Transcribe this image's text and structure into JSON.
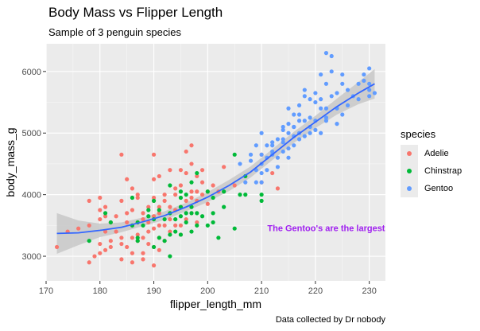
{
  "chart_data": {
    "type": "scatter",
    "title": "Body Mass vs Flipper Length",
    "subtitle": "Sample of 3 penguin species",
    "caption": "Data collected by Dr nobody",
    "xlabel": "flipper_length_mm",
    "ylabel": "body_mass_g",
    "xlim": [
      170,
      233
    ],
    "ylim": [
      2600,
      6450
    ],
    "x_ticks": [
      170,
      180,
      190,
      200,
      210,
      220,
      230
    ],
    "y_ticks": [
      3000,
      4000,
      5000,
      6000
    ],
    "grid": true,
    "legend": {
      "title": "species",
      "position": "right"
    },
    "annotation": {
      "text": "The Gentoo's are the largest",
      "x": 222,
      "y": 3460,
      "color": "#a020f0"
    },
    "series": [
      {
        "name": "Adelie",
        "color": "#f8766d",
        "points": [
          [
            172,
            3150
          ],
          [
            174,
            3400
          ],
          [
            176,
            3450
          ],
          [
            178,
            3900
          ],
          [
            178,
            2900
          ],
          [
            178,
            3500
          ],
          [
            179,
            3000
          ],
          [
            180,
            3950
          ],
          [
            180,
            3600
          ],
          [
            180,
            3200
          ],
          [
            180,
            3050
          ],
          [
            180,
            3750
          ],
          [
            181,
            3650
          ],
          [
            181,
            3400
          ],
          [
            181,
            3100
          ],
          [
            181,
            3800
          ],
          [
            182,
            3550
          ],
          [
            182,
            3250
          ],
          [
            182,
            3150
          ],
          [
            183,
            3400
          ],
          [
            183,
            3650
          ],
          [
            184,
            3300
          ],
          [
            184,
            4650
          ],
          [
            184,
            3200
          ],
          [
            184,
            3900
          ],
          [
            184,
            2950
          ],
          [
            185,
            3700
          ],
          [
            185,
            3150
          ],
          [
            185,
            3550
          ],
          [
            185,
            4250
          ],
          [
            186,
            3050
          ],
          [
            186,
            3300
          ],
          [
            186,
            3500
          ],
          [
            186,
            3750
          ],
          [
            186,
            4100
          ],
          [
            186,
            2900
          ],
          [
            187,
            3350
          ],
          [
            187,
            3550
          ],
          [
            187,
            3950
          ],
          [
            187,
            4000
          ],
          [
            187,
            3250
          ],
          [
            188,
            3600
          ],
          [
            188,
            3300
          ],
          [
            188,
            3700
          ],
          [
            188,
            3050
          ],
          [
            188,
            2950
          ],
          [
            189,
            3400
          ],
          [
            189,
            3550
          ],
          [
            189,
            3800
          ],
          [
            189,
            3200
          ],
          [
            190,
            3450
          ],
          [
            190,
            3650
          ],
          [
            190,
            3900
          ],
          [
            190,
            4250
          ],
          [
            190,
            3150
          ],
          [
            190,
            2850
          ],
          [
            190,
            3950
          ],
          [
            190,
            4650
          ],
          [
            191,
            3800
          ],
          [
            191,
            3300
          ],
          [
            191,
            3500
          ],
          [
            191,
            3700
          ],
          [
            191,
            4300
          ],
          [
            191,
            3100
          ],
          [
            192,
            3900
          ],
          [
            192,
            3500
          ],
          [
            192,
            4000
          ],
          [
            192,
            3250
          ],
          [
            193,
            3800
          ],
          [
            193,
            3400
          ],
          [
            193,
            4400
          ],
          [
            193,
            3600
          ],
          [
            194,
            4000
          ],
          [
            194,
            3500
          ],
          [
            194,
            3750
          ],
          [
            194,
            4100
          ],
          [
            195,
            3800
          ],
          [
            195,
            4150
          ],
          [
            195,
            3500
          ],
          [
            195,
            3350
          ],
          [
            195,
            4400
          ],
          [
            196,
            3900
          ],
          [
            196,
            4350
          ],
          [
            196,
            3600
          ],
          [
            196,
            4700
          ],
          [
            197,
            4050
          ],
          [
            197,
            3700
          ],
          [
            197,
            4500
          ],
          [
            197,
            3950
          ],
          [
            197,
            4800
          ],
          [
            198,
            4300
          ],
          [
            198,
            3900
          ],
          [
            198,
            4050
          ],
          [
            198,
            3550
          ],
          [
            199,
            4000
          ],
          [
            199,
            4200
          ],
          [
            199,
            4400
          ],
          [
            200,
            4050
          ],
          [
            200,
            3850
          ],
          [
            201,
            4150
          ],
          [
            202,
            4050
          ],
          [
            203,
            4450
          ],
          [
            205,
            4150
          ],
          [
            210,
            4200
          ],
          [
            210,
            4650
          ],
          [
            212,
            4350
          ],
          [
            213,
            4100
          ]
        ]
      },
      {
        "name": "Chinstrap",
        "color": "#00ba38",
        "points": [
          [
            178,
            3250
          ],
          [
            181,
            3700
          ],
          [
            182,
            3550
          ],
          [
            186,
            3500
          ],
          [
            186,
            3950
          ],
          [
            187,
            3300
          ],
          [
            187,
            3550
          ],
          [
            187,
            3250
          ],
          [
            188,
            3500
          ],
          [
            189,
            3650
          ],
          [
            189,
            3750
          ],
          [
            190,
            3600
          ],
          [
            190,
            3150
          ],
          [
            190,
            3900
          ],
          [
            191,
            3300
          ],
          [
            191,
            3750
          ],
          [
            192,
            3250
          ],
          [
            192,
            3600
          ],
          [
            193,
            3350
          ],
          [
            193,
            3700
          ],
          [
            193,
            4150
          ],
          [
            193,
            3000
          ],
          [
            194,
            3600
          ],
          [
            194,
            3400
          ],
          [
            195,
            3650
          ],
          [
            195,
            3800
          ],
          [
            195,
            3350
          ],
          [
            195,
            4050
          ],
          [
            195,
            3950
          ],
          [
            196,
            3700
          ],
          [
            196,
            4000
          ],
          [
            196,
            3550
          ],
          [
            197,
            3800
          ],
          [
            197,
            4200
          ],
          [
            197,
            3700
          ],
          [
            197,
            3400
          ],
          [
            198,
            3700
          ],
          [
            198,
            3500
          ],
          [
            198,
            4350
          ],
          [
            199,
            3650
          ],
          [
            200,
            3500
          ],
          [
            200,
            4050
          ],
          [
            201,
            3550
          ],
          [
            201,
            3700
          ],
          [
            201,
            3950
          ],
          [
            202,
            3300
          ],
          [
            203,
            3800
          ],
          [
            203,
            4050
          ],
          [
            205,
            4650
          ],
          [
            205,
            3450
          ],
          [
            206,
            4000
          ],
          [
            207,
            4300
          ],
          [
            207,
            4000
          ],
          [
            210,
            3900
          ],
          [
            210,
            4000
          ]
        ]
      },
      {
        "name": "Gentoo",
        "color": "#619cff",
        "points": [
          [
            206,
            4500
          ],
          [
            207,
            4200
          ],
          [
            208,
            4650
          ],
          [
            208,
            4550
          ],
          [
            209,
            4400
          ],
          [
            209,
            4800
          ],
          [
            209,
            4200
          ],
          [
            210,
            4500
          ],
          [
            210,
            4650
          ],
          [
            210,
            4350
          ],
          [
            210,
            5000
          ],
          [
            210,
            4200
          ],
          [
            211,
            4800
          ],
          [
            211,
            4400
          ],
          [
            211,
            4600
          ],
          [
            212,
            4850
          ],
          [
            212,
            4700
          ],
          [
            212,
            4650
          ],
          [
            213,
            4600
          ],
          [
            213,
            4900
          ],
          [
            213,
            4450
          ],
          [
            214,
            4850
          ],
          [
            214,
            5100
          ],
          [
            214,
            4700
          ],
          [
            214,
            4900
          ],
          [
            215,
            5000
          ],
          [
            215,
            4600
          ],
          [
            215,
            5400
          ],
          [
            215,
            5150
          ],
          [
            215,
            4750
          ],
          [
            216,
            4950
          ],
          [
            216,
            5100
          ],
          [
            216,
            4800
          ],
          [
            216,
            5300
          ],
          [
            217,
            4900
          ],
          [
            217,
            5200
          ],
          [
            217,
            5000
          ],
          [
            217,
            5450
          ],
          [
            218,
            5200
          ],
          [
            218,
            5600
          ],
          [
            218,
            5700
          ],
          [
            218,
            4950
          ],
          [
            219,
            5000
          ],
          [
            219,
            5250
          ],
          [
            219,
            5550
          ],
          [
            220,
            5200
          ],
          [
            220,
            5650
          ],
          [
            220,
            5050
          ],
          [
            221,
            5000
          ],
          [
            221,
            5400
          ],
          [
            221,
            5950
          ],
          [
            221,
            5550
          ],
          [
            222,
            5250
          ],
          [
            222,
            5800
          ],
          [
            222,
            5400
          ],
          [
            222,
            5200
          ],
          [
            223,
            5600
          ],
          [
            223,
            6000
          ],
          [
            224,
            5650
          ],
          [
            224,
            5400
          ],
          [
            225,
            5300
          ],
          [
            225,
            5800
          ],
          [
            225,
            5950
          ],
          [
            226,
            5450
          ],
          [
            226,
            5700
          ],
          [
            227,
            5600
          ],
          [
            228,
            5550
          ],
          [
            228,
            5800
          ],
          [
            229,
            5950
          ],
          [
            230,
            5600
          ],
          [
            230,
            5800
          ],
          [
            230,
            5700
          ],
          [
            231,
            5650
          ],
          [
            222,
            6300
          ],
          [
            223,
            6250
          ],
          [
            219,
            5100
          ],
          [
            216,
            5100
          ],
          [
            212,
            4800
          ],
          [
            214,
            5050
          ],
          [
            220,
            5500
          ],
          [
            229,
            5850
          ],
          [
            230,
            6050
          ],
          [
            224,
            5150
          ],
          [
            217,
            5300
          ]
        ]
      }
    ],
    "trend": {
      "color": "#3366ff",
      "ribbon_color": "#c8c8c8",
      "x": [
        172,
        176,
        180,
        184,
        188,
        192,
        196,
        200,
        204,
        208,
        212,
        216,
        220,
        224,
        228,
        231
      ],
      "y": [
        3370,
        3380,
        3420,
        3470,
        3560,
        3660,
        3800,
        3960,
        4150,
        4370,
        4650,
        4930,
        5180,
        5430,
        5650,
        5800
      ],
      "band_x": [
        172,
        176,
        180,
        184,
        188,
        192,
        196,
        200,
        204,
        208,
        212,
        216,
        220,
        224,
        228,
        231
      ],
      "band_half": [
        330,
        200,
        110,
        80,
        70,
        70,
        70,
        80,
        90,
        90,
        90,
        90,
        100,
        130,
        180,
        240
      ]
    }
  }
}
